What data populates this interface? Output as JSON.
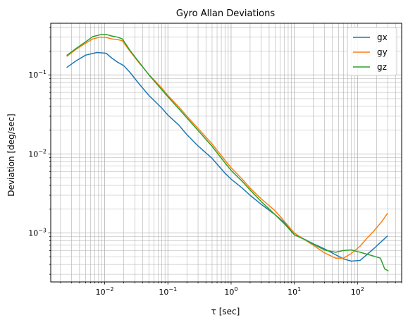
{
  "chart_data": {
    "type": "line",
    "title": "Gyro Allan Deviations",
    "xlabel": "τ [sec]",
    "ylabel": "Deviation [deg/sec]",
    "x_scale": "log",
    "y_scale": "log",
    "xlim": [
      0.0014,
      500
    ],
    "ylim": [
      0.00024,
      0.45
    ],
    "grid": "major and minor",
    "legend_position": "upper right",
    "x_ticks": [
      {
        "value": 0.01,
        "base": "10",
        "exp": "−2"
      },
      {
        "value": 0.1,
        "base": "10",
        "exp": "−1"
      },
      {
        "value": 1,
        "base": "10",
        "exp": "0"
      },
      {
        "value": 10,
        "base": "10",
        "exp": "1"
      },
      {
        "value": 100,
        "base": "10",
        "exp": "2"
      }
    ],
    "y_ticks": [
      {
        "value": 0.001,
        "base": "10",
        "exp": "−3"
      },
      {
        "value": 0.01,
        "base": "10",
        "exp": "−2"
      },
      {
        "value": 0.1,
        "base": "10",
        "exp": "−1"
      }
    ],
    "series": [
      {
        "name": "gx",
        "color": "#1f77b4",
        "points": [
          [
            0.0025,
            0.124
          ],
          [
            0.0035,
            0.15
          ],
          [
            0.005,
            0.178
          ],
          [
            0.0075,
            0.192
          ],
          [
            0.0105,
            0.188
          ],
          [
            0.013,
            0.163
          ],
          [
            0.016,
            0.145
          ],
          [
            0.02,
            0.131
          ],
          [
            0.025,
            0.108
          ],
          [
            0.035,
            0.077
          ],
          [
            0.05,
            0.055
          ],
          [
            0.08,
            0.038
          ],
          [
            0.1,
            0.031
          ],
          [
            0.15,
            0.023
          ],
          [
            0.2,
            0.0175
          ],
          [
            0.3,
            0.0126
          ],
          [
            0.5,
            0.0088
          ],
          [
            0.8,
            0.0057
          ],
          [
            1,
            0.0048
          ],
          [
            1.5,
            0.0037
          ],
          [
            2,
            0.003
          ],
          [
            3,
            0.0023
          ],
          [
            5,
            0.0017
          ],
          [
            7,
            0.00135
          ],
          [
            10,
            0.00095
          ],
          [
            15,
            0.00082
          ],
          [
            20,
            0.00073
          ],
          [
            30,
            0.00063
          ],
          [
            45,
            0.00053
          ],
          [
            60,
            0.00047
          ],
          [
            80,
            0.00044
          ],
          [
            110,
            0.00045
          ],
          [
            140,
            0.00053
          ],
          [
            180,
            0.00063
          ],
          [
            240,
            0.00078
          ],
          [
            300,
            0.00092
          ]
        ]
      },
      {
        "name": "gy",
        "color": "#ff7f0e",
        "points": [
          [
            0.0025,
            0.171
          ],
          [
            0.0035,
            0.21
          ],
          [
            0.005,
            0.252
          ],
          [
            0.0065,
            0.285
          ],
          [
            0.0085,
            0.3
          ],
          [
            0.0105,
            0.298
          ],
          [
            0.013,
            0.285
          ],
          [
            0.016,
            0.28
          ],
          [
            0.019,
            0.27
          ],
          [
            0.025,
            0.2
          ],
          [
            0.035,
            0.142
          ],
          [
            0.05,
            0.101
          ],
          [
            0.08,
            0.068
          ],
          [
            0.1,
            0.055
          ],
          [
            0.15,
            0.039
          ],
          [
            0.2,
            0.03
          ],
          [
            0.3,
            0.021
          ],
          [
            0.5,
            0.0134
          ],
          [
            0.8,
            0.0083
          ],
          [
            1,
            0.0067
          ],
          [
            1.5,
            0.0048
          ],
          [
            2,
            0.0037
          ],
          [
            3,
            0.0027
          ],
          [
            5,
            0.0019
          ],
          [
            7,
            0.0014
          ],
          [
            10,
            0.001
          ],
          [
            15,
            0.00081
          ],
          [
            20,
            0.0007
          ],
          [
            30,
            0.00056
          ],
          [
            45,
            0.00048
          ],
          [
            60,
            0.00048
          ],
          [
            80,
            0.00055
          ],
          [
            110,
            0.00068
          ],
          [
            140,
            0.00085
          ],
          [
            180,
            0.00105
          ],
          [
            240,
            0.00138
          ],
          [
            300,
            0.00178
          ]
        ]
      },
      {
        "name": "gz",
        "color": "#2ca02c",
        "points": [
          [
            0.0025,
            0.176
          ],
          [
            0.0035,
            0.215
          ],
          [
            0.005,
            0.262
          ],
          [
            0.0065,
            0.305
          ],
          [
            0.0085,
            0.322
          ],
          [
            0.0105,
            0.325
          ],
          [
            0.013,
            0.31
          ],
          [
            0.016,
            0.3
          ],
          [
            0.019,
            0.285
          ],
          [
            0.025,
            0.205
          ],
          [
            0.035,
            0.145
          ],
          [
            0.05,
            0.1
          ],
          [
            0.08,
            0.065
          ],
          [
            0.1,
            0.053
          ],
          [
            0.15,
            0.037
          ],
          [
            0.2,
            0.0285
          ],
          [
            0.3,
            0.0198
          ],
          [
            0.5,
            0.0125
          ],
          [
            0.8,
            0.0077
          ],
          [
            1,
            0.0062
          ],
          [
            1.5,
            0.0045
          ],
          [
            2,
            0.0035
          ],
          [
            3,
            0.0025
          ],
          [
            5,
            0.0017
          ],
          [
            7,
            0.0013
          ],
          [
            10,
            0.00095
          ],
          [
            15,
            0.00082
          ],
          [
            20,
            0.00072
          ],
          [
            30,
            0.00061
          ],
          [
            45,
            0.00057
          ],
          [
            60,
            0.0006
          ],
          [
            80,
            0.00061
          ],
          [
            110,
            0.00057
          ],
          [
            140,
            0.00054
          ],
          [
            180,
            0.00051
          ],
          [
            230,
            0.00048
          ],
          [
            270,
            0.00035
          ],
          [
            310,
            0.00033
          ]
        ]
      }
    ]
  }
}
